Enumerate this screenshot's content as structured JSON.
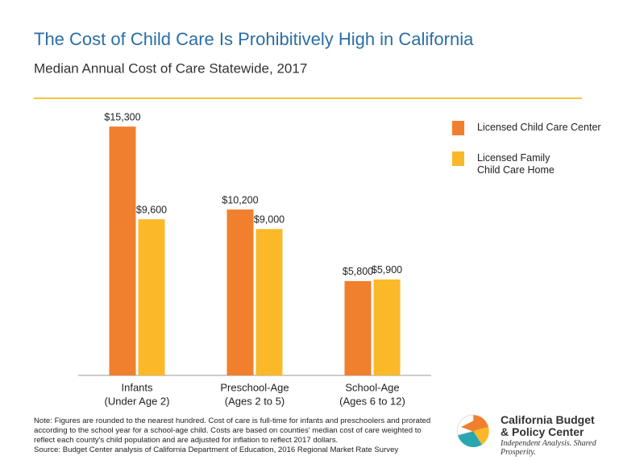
{
  "chart_data": {
    "type": "bar",
    "title": "The Cost of Child Care Is Prohibitively High in California",
    "subtitle": "Median Annual Cost of Care Statewide, 2017",
    "categories": [
      [
        "Infants",
        "(Under Age 2)"
      ],
      [
        "Preschool-Age",
        "(Ages 2 to 5)"
      ],
      [
        "School-Age",
        "(Ages 6 to 12)"
      ]
    ],
    "series": [
      {
        "name": "Licensed Child Care Center",
        "color": "#f07f2e",
        "values": [
          15300,
          10200,
          5800
        ],
        "value_labels": [
          "$15,300",
          "$10,200",
          "$5,800"
        ]
      },
      {
        "name": "Licensed Family Child Care Home",
        "color": "#fbb829",
        "values": [
          9600,
          9000,
          5900
        ],
        "value_labels": [
          "$9,600",
          "$9,000",
          "$5,900"
        ]
      }
    ],
    "ylim": [
      0,
      16000
    ]
  },
  "note": "Note: Figures are rounded to the nearest hundred. Cost of care is full-time for infants and preschoolers and prorated according to the school year for a school-age child. Costs are based on counties' median cost of care weighted to reflect each county's child population and are adjusted for inflation to reflect 2017 dollars.",
  "source": "Source: Budget Center analysis of California Department of Education, 2016 Regional Market Rate Survey",
  "logo": {
    "name_line1": "California Budget",
    "name_line2": "& Policy Center",
    "tagline": "Independent Analysis. Shared Prosperity."
  }
}
